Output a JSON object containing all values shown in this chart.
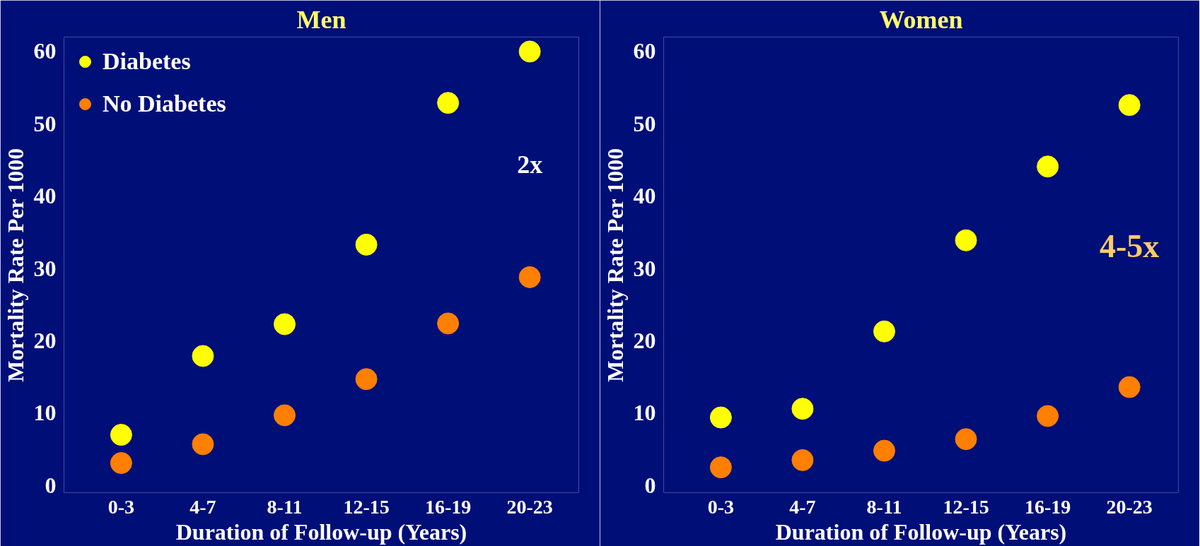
{
  "chart_data": [
    {
      "type": "scatter",
      "title": "Men",
      "xlabel": "Duration of Follow-up (Years)",
      "ylabel": "Mortality Rate Per 1000",
      "categories": [
        "0-3",
        "4-7",
        "8-11",
        "12-15",
        "16-19",
        "20-23"
      ],
      "series": [
        {
          "name": "Diabetes",
          "color": "#ffff00",
          "values": [
            7.0,
            17.9,
            22.3,
            33.3,
            52.9,
            60.0
          ]
        },
        {
          "name": "No Diabetes",
          "color": "#ff7f00",
          "values": [
            3.1,
            5.7,
            9.7,
            14.7,
            22.4,
            28.8
          ]
        }
      ],
      "ylim": [
        -1,
        62
      ],
      "yticks": [
        0,
        10,
        20,
        30,
        40,
        50,
        60
      ],
      "grid": false,
      "legend": "top left",
      "marker": "circle",
      "annotations": [
        "2x"
      ]
    },
    {
      "type": "scatter",
      "title": "Women",
      "xlabel": "Duration of Follow-up (Years)",
      "ylabel": "Mortality Rate Per 1000",
      "categories": [
        "0-3",
        "4-7",
        "8-11",
        "12-15",
        "16-19",
        "20-23"
      ],
      "series": [
        {
          "color": "#ffff00",
          "values": [
            9.4,
            10.6,
            21.3,
            33.9,
            44.1,
            52.6
          ]
        },
        {
          "color": "#ff7f00",
          "values": [
            2.5,
            3.5,
            4.8,
            6.4,
            9.6,
            13.6
          ]
        }
      ],
      "ylim": [
        -1,
        62
      ],
      "yticks": [
        0,
        10,
        20,
        30,
        40,
        50,
        60
      ],
      "grid": false,
      "marker": "circle",
      "annotations": [
        "4-5x"
      ]
    }
  ]
}
